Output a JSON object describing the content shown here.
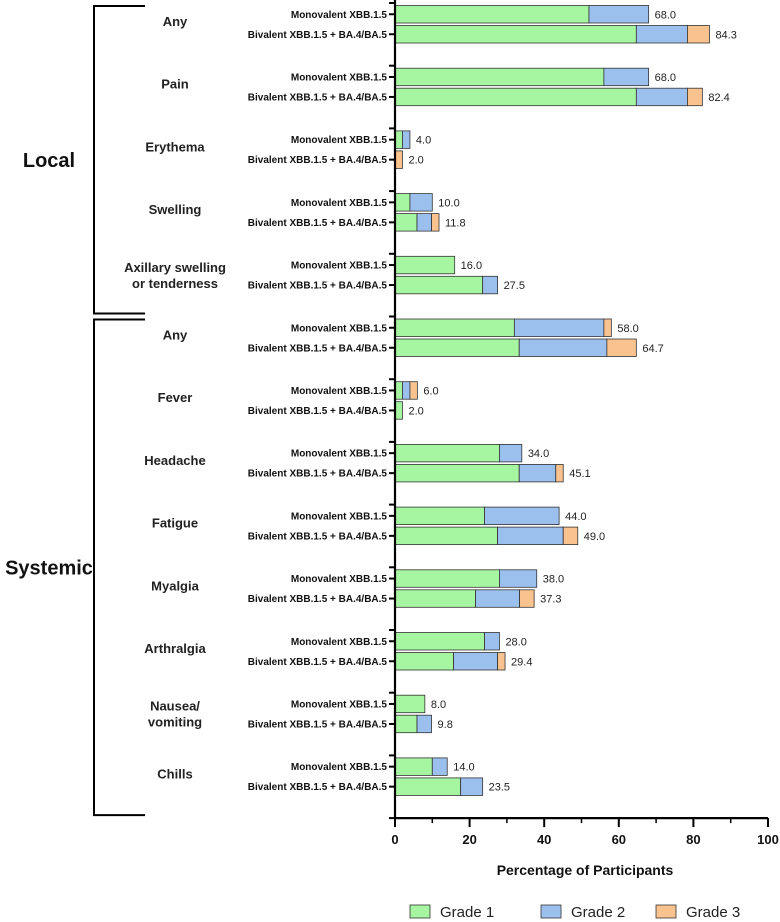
{
  "chart_data": {
    "type": "bar",
    "orientation": "horizontal",
    "stacked": true,
    "xlabel": "Percentage of Participants",
    "xlim": [
      0,
      100
    ],
    "xticks": [
      "0",
      "20",
      "40",
      "60",
      "80",
      "100"
    ],
    "bar_categories": [
      "Monovalent XBB.1.5",
      "Bivalent XBB.1.5 + BA.4/BA.5"
    ],
    "sections": [
      {
        "name": "Local",
        "groups": [
          "Any",
          "Pain",
          "Erythema",
          "Swelling",
          "Axillary swelling or tenderness"
        ]
      },
      {
        "name": "Systemic",
        "groups": [
          "Any",
          "Fever",
          "Headache",
          "Fatigue",
          "Myalgia",
          "Arthralgia",
          "Nausea/ vomiting",
          "Chills"
        ]
      }
    ],
    "groups": [
      {
        "label": [
          "Any"
        ],
        "bars": [
          {
            "category": "Monovalent XBB.1.5",
            "grade1": 52.0,
            "grade2": 16.0,
            "grade3": 0.0,
            "total": "68.0"
          },
          {
            "category": "Bivalent XBB.1.5 + BA.4/BA.5",
            "grade1": 64.7,
            "grade2": 13.7,
            "grade3": 5.9,
            "total": "84.3"
          }
        ]
      },
      {
        "label": [
          "Pain"
        ],
        "bars": [
          {
            "category": "Monovalent XBB.1.5",
            "grade1": 56.0,
            "grade2": 12.0,
            "grade3": 0.0,
            "total": "68.0"
          },
          {
            "category": "Bivalent XBB.1.5 + BA.4/BA.5",
            "grade1": 64.7,
            "grade2": 13.7,
            "grade3": 4.0,
            "total": "82.4"
          }
        ]
      },
      {
        "label": [
          "Erythema"
        ],
        "bars": [
          {
            "category": "Monovalent XBB.1.5",
            "grade1": 2.0,
            "grade2": 2.0,
            "grade3": 0.0,
            "total": "4.0"
          },
          {
            "category": "Bivalent XBB.1.5 + BA.4/BA.5",
            "grade1": 0.0,
            "grade2": 0.0,
            "grade3": 2.0,
            "total": "2.0"
          }
        ]
      },
      {
        "label": [
          "Swelling"
        ],
        "bars": [
          {
            "category": "Monovalent XBB.1.5",
            "grade1": 4.0,
            "grade2": 6.0,
            "grade3": 0.0,
            "total": "10.0"
          },
          {
            "category": "Bivalent XBB.1.5 + BA.4/BA.5",
            "grade1": 5.9,
            "grade2": 3.9,
            "grade3": 2.0,
            "total": "11.8"
          }
        ]
      },
      {
        "label": [
          "Axillary swelling",
          "or tenderness"
        ],
        "bars": [
          {
            "category": "Monovalent XBB.1.5",
            "grade1": 16.0,
            "grade2": 0.0,
            "grade3": 0.0,
            "total": "16.0"
          },
          {
            "category": "Bivalent XBB.1.5 + BA.4/BA.5",
            "grade1": 23.5,
            "grade2": 4.0,
            "grade3": 0.0,
            "total": "27.5"
          }
        ]
      },
      {
        "label": [
          "Any"
        ],
        "bars": [
          {
            "category": "Monovalent XBB.1.5",
            "grade1": 32.0,
            "grade2": 24.0,
            "grade3": 2.0,
            "total": "58.0"
          },
          {
            "category": "Bivalent XBB.1.5 + BA.4/BA.5",
            "grade1": 33.3,
            "grade2": 23.5,
            "grade3": 7.9,
            "total": "64.7"
          }
        ]
      },
      {
        "label": [
          "Fever"
        ],
        "bars": [
          {
            "category": "Monovalent XBB.1.5",
            "grade1": 2.0,
            "grade2": 2.0,
            "grade3": 2.0,
            "total": "6.0"
          },
          {
            "category": "Bivalent XBB.1.5 + BA.4/BA.5",
            "grade1": 2.0,
            "grade2": 0.0,
            "grade3": 0.0,
            "total": "2.0"
          }
        ]
      },
      {
        "label": [
          "Headache"
        ],
        "bars": [
          {
            "category": "Monovalent XBB.1.5",
            "grade1": 28.0,
            "grade2": 6.0,
            "grade3": 0.0,
            "total": "34.0"
          },
          {
            "category": "Bivalent XBB.1.5 + BA.4/BA.5",
            "grade1": 33.3,
            "grade2": 9.8,
            "grade3": 2.0,
            "total": "45.1"
          }
        ]
      },
      {
        "label": [
          "Fatigue"
        ],
        "bars": [
          {
            "category": "Monovalent XBB.1.5",
            "grade1": 24.0,
            "grade2": 20.0,
            "grade3": 0.0,
            "total": "44.0"
          },
          {
            "category": "Bivalent XBB.1.5 + BA.4/BA.5",
            "grade1": 27.5,
            "grade2": 17.6,
            "grade3": 3.9,
            "total": "49.0"
          }
        ]
      },
      {
        "label": [
          "Myalgia"
        ],
        "bars": [
          {
            "category": "Monovalent XBB.1.5",
            "grade1": 28.0,
            "grade2": 10.0,
            "grade3": 0.0,
            "total": "38.0"
          },
          {
            "category": "Bivalent XBB.1.5 + BA.4/BA.5",
            "grade1": 21.6,
            "grade2": 11.8,
            "grade3": 3.9,
            "total": "37.3"
          }
        ]
      },
      {
        "label": [
          "Arthralgia"
        ],
        "bars": [
          {
            "category": "Monovalent XBB.1.5",
            "grade1": 24.0,
            "grade2": 4.0,
            "grade3": 0.0,
            "total": "28.0"
          },
          {
            "category": "Bivalent XBB.1.5 + BA.4/BA.5",
            "grade1": 15.7,
            "grade2": 11.8,
            "grade3": 2.0,
            "total": "29.4"
          }
        ]
      },
      {
        "label": [
          "Nausea/",
          "vomiting"
        ],
        "bars": [
          {
            "category": "Monovalent XBB.1.5",
            "grade1": 8.0,
            "grade2": 0.0,
            "grade3": 0.0,
            "total": "8.0"
          },
          {
            "category": "Bivalent XBB.1.5 + BA.4/BA.5",
            "grade1": 5.9,
            "grade2": 3.9,
            "grade3": 0.0,
            "total": "9.8"
          }
        ]
      },
      {
        "label": [
          "Chills"
        ],
        "bars": [
          {
            "category": "Monovalent XBB.1.5",
            "grade1": 10.0,
            "grade2": 4.0,
            "grade3": 0.0,
            "total": "14.0"
          },
          {
            "category": "Bivalent XBB.1.5 + BA.4/BA.5",
            "grade1": 17.6,
            "grade2": 5.9,
            "grade3": 0.0,
            "total": "23.5"
          }
        ]
      }
    ],
    "legend": [
      {
        "name": "Grade 1",
        "color": "#a6f5a0"
      },
      {
        "name": "Grade 2",
        "color": "#9cc0ee"
      },
      {
        "name": "Grade 3",
        "color": "#f9c38f"
      }
    ]
  }
}
